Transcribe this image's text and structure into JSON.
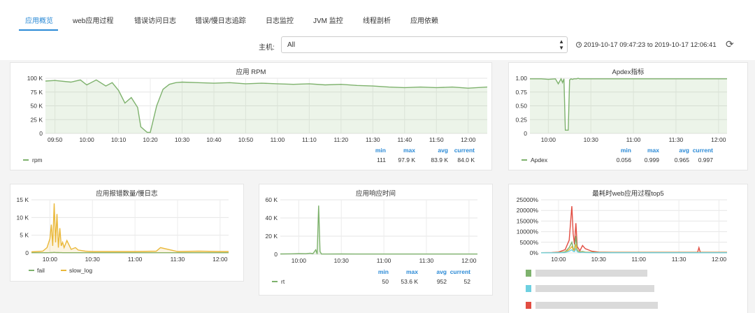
{
  "nav": {
    "tabs": [
      "应用概览",
      "web应用过程",
      "错误访问日志",
      "错误/慢日志追踪",
      "日志监控",
      "JVM 监控",
      "线程剖析",
      "应用依赖"
    ],
    "active": 0
  },
  "filter": {
    "host_label": "主机:",
    "host_value": "All",
    "time_range": "2019-10-17 09:47:23 to 2019-10-17 12:06:41"
  },
  "stat_headers": {
    "min": "min",
    "max": "max",
    "avg": "avg",
    "current": "current"
  },
  "colors": {
    "green": "#7eb26d",
    "yellow": "#eab839",
    "red": "#e24d42",
    "blue": "#6ed0e0",
    "accent": "#2b8ad6"
  },
  "chart_data": [
    {
      "id": "rpm",
      "type": "area",
      "title": "应用 RPM",
      "x": [
        "09:47",
        "09:50",
        "09:55",
        "09:58",
        "10:00",
        "10:03",
        "10:06",
        "10:08",
        "10:10",
        "10:12",
        "10:14",
        "10:16",
        "10:17",
        "10:19",
        "10:20",
        "10:22",
        "10:24",
        "10:26",
        "10:28",
        "10:30",
        "10:35",
        "10:40",
        "10:45",
        "10:50",
        "10:55",
        "11:00",
        "11:05",
        "11:10",
        "11:15",
        "11:20",
        "11:25",
        "11:30",
        "11:35",
        "11:40",
        "11:45",
        "11:50",
        "11:55",
        "12:00",
        "12:06"
      ],
      "y": [
        95000,
        96000,
        93000,
        97000,
        88000,
        97000,
        86000,
        92000,
        78000,
        55000,
        65000,
        47000,
        12000,
        2000,
        2000,
        50000,
        80000,
        89000,
        92000,
        93000,
        92000,
        91000,
        92000,
        90000,
        91000,
        90000,
        89000,
        90000,
        88000,
        89000,
        87000,
        86000,
        84000,
        83000,
        84000,
        83000,
        84000,
        82000,
        84000
      ],
      "xticks": [
        "09:50",
        "10:00",
        "10:10",
        "10:20",
        "10:30",
        "10:40",
        "10:50",
        "11:00",
        "11:10",
        "11:20",
        "11:30",
        "11:40",
        "11:50",
        "12:00"
      ],
      "yticks": [
        "0",
        "25 K",
        "50 K",
        "75 K",
        "100 K"
      ],
      "ylim": [
        0,
        100000
      ],
      "series": [
        {
          "name": "rpm",
          "color": "#7eb26d",
          "min": "111",
          "max": "97.9 K",
          "avg": "83.9 K",
          "current": "84.0 K"
        }
      ]
    },
    {
      "id": "apdex",
      "type": "area",
      "title": "Apdex指标",
      "x": [
        "09:47",
        "09:55",
        "10:00",
        "10:05",
        "10:07",
        "10:09",
        "10:10",
        "10:11",
        "10:12",
        "10:14",
        "10:15",
        "10:16",
        "10:17",
        "10:18",
        "10:19",
        "10:20",
        "10:21",
        "10:22",
        "10:25",
        "10:30",
        "10:45",
        "11:00",
        "11:15",
        "11:30",
        "11:45",
        "12:00",
        "12:06"
      ],
      "y": [
        0.99,
        0.99,
        0.98,
        0.99,
        0.9,
        0.99,
        0.92,
        0.99,
        0.06,
        0.06,
        0.97,
        0.99,
        0.98,
        0.99,
        0.99,
        0.99,
        1,
        0.99,
        0.99,
        0.99,
        0.99,
        0.99,
        0.99,
        0.99,
        0.99,
        0.99,
        0.99
      ],
      "xticks": [
        "10:00",
        "10:30",
        "11:00",
        "11:30",
        "12:00"
      ],
      "yticks": [
        "0",
        "0.25",
        "0.50",
        "0.75",
        "1.00"
      ],
      "ylim": [
        0,
        1
      ],
      "series": [
        {
          "name": "Apdex",
          "color": "#7eb26d",
          "min": "0.056",
          "max": "0.999",
          "avg": "0.965",
          "current": "0.997"
        }
      ]
    },
    {
      "id": "errors",
      "type": "area",
      "title": "应用报错数量/慢日志",
      "x": [
        "09:47",
        "09:55",
        "09:58",
        "10:00",
        "10:01",
        "10:02",
        "10:03",
        "10:04",
        "10:05",
        "10:06",
        "10:07",
        "10:08",
        "10:09",
        "10:10",
        "10:12",
        "10:15",
        "10:18",
        "10:20",
        "10:25",
        "10:30",
        "10:45",
        "11:00",
        "11:15",
        "11:18",
        "11:30",
        "11:45",
        "12:00",
        "12:06"
      ],
      "xticks": [
        "10:00",
        "10:30",
        "11:00",
        "11:30",
        "12:00"
      ],
      "yticks": [
        "0",
        "5 K",
        "10 K",
        "15 K"
      ],
      "ylim": [
        0,
        15000
      ],
      "series": [
        {
          "name": "fail",
          "color": "#7eb26d",
          "y": [
            50,
            50,
            50,
            80,
            100,
            120,
            150,
            120,
            100,
            90,
            80,
            70,
            60,
            50,
            50,
            50,
            50,
            50,
            50,
            50,
            50,
            50,
            50,
            50,
            50,
            50,
            50,
            50
          ]
        },
        {
          "name": "slow_log",
          "color": "#eab839",
          "y": [
            300,
            500,
            1500,
            4000,
            8000,
            2000,
            14000,
            3000,
            11000,
            1500,
            7000,
            2000,
            3000,
            1500,
            3500,
            1000,
            1500,
            800,
            500,
            400,
            400,
            400,
            500,
            1500,
            400,
            500,
            400,
            400
          ]
        }
      ]
    },
    {
      "id": "rt",
      "type": "area",
      "title": "应用响应时间",
      "x": [
        "09:47",
        "09:55",
        "10:00",
        "10:05",
        "10:08",
        "10:10",
        "10:12",
        "10:13",
        "10:14",
        "10:15",
        "10:16",
        "10:18",
        "10:20",
        "10:30",
        "10:45",
        "11:00",
        "11:15",
        "11:30",
        "11:45",
        "12:00",
        "12:06"
      ],
      "y": [
        400,
        500,
        800,
        700,
        1200,
        800,
        5000,
        300,
        53600,
        3000,
        400,
        300,
        300,
        400,
        300,
        300,
        300,
        300,
        300,
        300,
        300
      ],
      "xticks": [
        "10:00",
        "10:30",
        "11:00",
        "11:30",
        "12:00"
      ],
      "yticks": [
        "0",
        "20 K",
        "40 K",
        "60 K"
      ],
      "ylim": [
        0,
        60000
      ],
      "series": [
        {
          "name": "rt",
          "color": "#7eb26d",
          "min": "50",
          "max": "53.6 K",
          "avg": "952",
          "current": "52"
        }
      ]
    },
    {
      "id": "top5",
      "type": "line",
      "title": "最耗时web应用过程top5",
      "x": [
        "09:47",
        "09:55",
        "10:00",
        "10:05",
        "10:08",
        "10:10",
        "10:11",
        "10:12",
        "10:13",
        "10:14",
        "10:15",
        "10:16",
        "10:18",
        "10:20",
        "10:25",
        "10:30",
        "10:40",
        "11:00",
        "11:30",
        "11:44",
        "11:45",
        "11:46",
        "12:00",
        "12:06"
      ],
      "xticks": [
        "10:00",
        "10:30",
        "11:00",
        "11:30",
        "12:00"
      ],
      "yticks": [
        "0%",
        "5000%",
        "10000%",
        "15000%",
        "20000%",
        "25000%"
      ],
      "ylim": [
        0,
        25000
      ],
      "series": [
        {
          "color": "#e24d42",
          "y": [
            100,
            200,
            400,
            1500,
            6000,
            22000,
            9000,
            4000,
            14000,
            3000,
            2000,
            1000,
            3500,
            2000,
            800,
            400,
            300,
            300,
            300,
            300,
            2500,
            300,
            300,
            300
          ]
        },
        {
          "color": "#7eb26d",
          "y": [
            100,
            100,
            200,
            500,
            2500,
            5000,
            2000,
            1500,
            8000,
            1500,
            800,
            500,
            700,
            400,
            300,
            200,
            200,
            200,
            200,
            200,
            200,
            200,
            200,
            200
          ]
        },
        {
          "color": "#eab839",
          "y": [
            100,
            100,
            200,
            300,
            1500,
            3000,
            1500,
            1000,
            4000,
            1000,
            500,
            300,
            500,
            300,
            200,
            200,
            200,
            200,
            200,
            200,
            200,
            200,
            200,
            200
          ]
        },
        {
          "color": "#6ed0e0",
          "y": [
            50,
            50,
            100,
            200,
            800,
            1500,
            800,
            600,
            2000,
            600,
            300,
            200,
            300,
            200,
            100,
            100,
            100,
            100,
            100,
            100,
            100,
            100,
            100,
            100
          ]
        }
      ]
    }
  ]
}
